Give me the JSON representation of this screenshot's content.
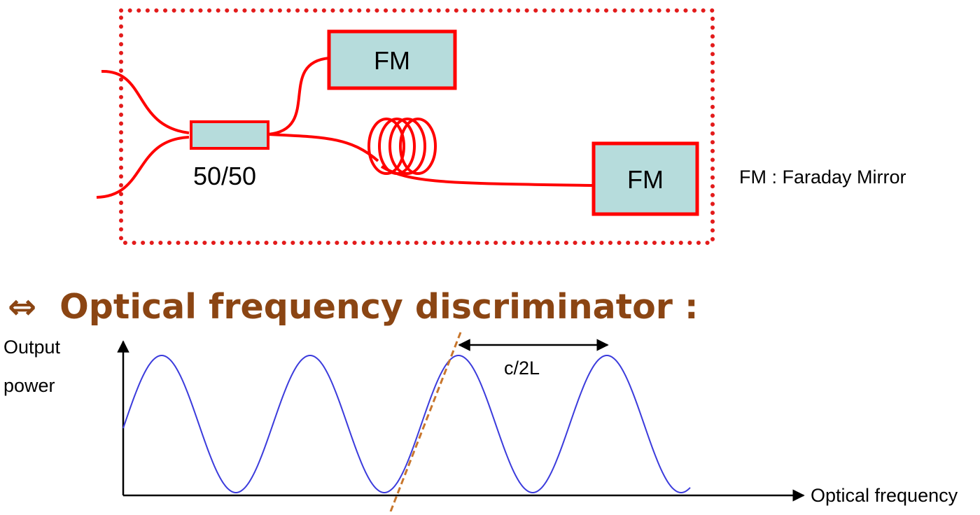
{
  "diagram": {
    "box_outline_color": "#e31b1b",
    "fiber_color": "#ff0000",
    "component_fill": "#b6dcdc",
    "coupler": {
      "label": "50/50"
    },
    "mirror_top": {
      "label": "FM"
    },
    "mirror_right": {
      "label": "FM"
    },
    "coil_icon": "fiber-coil",
    "legend": "FM : Faraday Mirror"
  },
  "heading": {
    "symbol": "⇔",
    "text": "Optical frequency discriminator :",
    "color": "#8b4513"
  },
  "plot": {
    "ylabel_line1": "Output",
    "ylabel_line2": "power",
    "xlabel": "Optical frequency",
    "period_label": "c/2L",
    "curve_color": "#3b3bdc",
    "tangent_color": "#c8762c"
  }
}
